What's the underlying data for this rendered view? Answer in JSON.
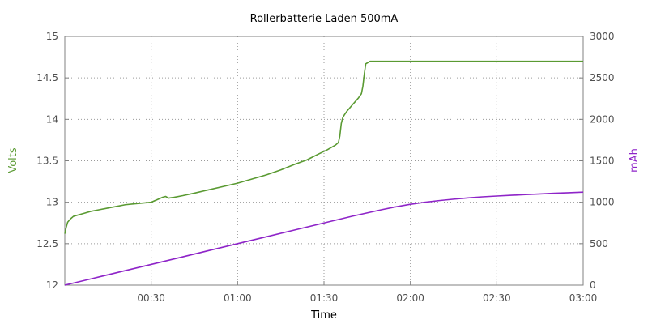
{
  "chart_data": {
    "type": "line",
    "title": "Rollerbatterie Laden 500mA",
    "xlabel": "Time",
    "ylabel_left": "Volts",
    "ylabel_right": "mAh",
    "xlim_minutes": [
      0,
      180
    ],
    "ylim_left": [
      12,
      15
    ],
    "ylim_right": [
      0,
      3000
    ],
    "grid": true,
    "x_ticks": [
      {
        "minutes": 30,
        "label": "00:30"
      },
      {
        "minutes": 60,
        "label": "01:00"
      },
      {
        "minutes": 90,
        "label": "01:30"
      },
      {
        "minutes": 120,
        "label": "02:00"
      },
      {
        "minutes": 150,
        "label": "02:30"
      },
      {
        "minutes": 180,
        "label": "03:00"
      }
    ],
    "y_left_ticks": [
      {
        "value": 12,
        "label": "12"
      },
      {
        "value": 12.5,
        "label": "12.5"
      },
      {
        "value": 13,
        "label": "13"
      },
      {
        "value": 13.5,
        "label": "13.5"
      },
      {
        "value": 14,
        "label": "14"
      },
      {
        "value": 14.5,
        "label": "14.5"
      },
      {
        "value": 15,
        "label": "15"
      }
    ],
    "y_right_ticks": [
      {
        "value": 0,
        "label": "0"
      },
      {
        "value": 500,
        "label": "500"
      },
      {
        "value": 1000,
        "label": "1000"
      },
      {
        "value": 1500,
        "label": "1500"
      },
      {
        "value": 2000,
        "label": "2000"
      },
      {
        "value": 2500,
        "label": "2500"
      },
      {
        "value": 3000,
        "label": "3000"
      }
    ],
    "series": [
      {
        "axis": "left",
        "color": "#5a9a32",
        "points": [
          [
            0,
            12.62
          ],
          [
            0.5,
            12.7
          ],
          [
            1,
            12.76
          ],
          [
            2,
            12.8
          ],
          [
            3,
            12.83
          ],
          [
            5,
            12.85
          ],
          [
            7,
            12.87
          ],
          [
            9,
            12.89
          ],
          [
            12,
            12.91
          ],
          [
            15,
            12.93
          ],
          [
            18,
            12.95
          ],
          [
            21,
            12.97
          ],
          [
            24,
            12.98
          ],
          [
            27,
            12.99
          ],
          [
            30,
            13.0
          ],
          [
            32,
            13.03
          ],
          [
            34,
            13.06
          ],
          [
            35,
            13.07
          ],
          [
            36,
            13.05
          ],
          [
            38,
            13.06
          ],
          [
            41,
            13.08
          ],
          [
            45,
            13.11
          ],
          [
            50,
            13.15
          ],
          [
            55,
            13.19
          ],
          [
            60,
            13.23
          ],
          [
            65,
            13.28
          ],
          [
            70,
            13.33
          ],
          [
            75,
            13.39
          ],
          [
            80,
            13.46
          ],
          [
            84,
            13.51
          ],
          [
            88,
            13.58
          ],
          [
            91,
            13.63
          ],
          [
            94,
            13.69
          ],
          [
            95,
            13.72
          ],
          [
            95.5,
            13.8
          ],
          [
            96,
            13.95
          ],
          [
            96.5,
            14.02
          ],
          [
            97,
            14.05
          ],
          [
            98,
            14.1
          ],
          [
            99,
            14.14
          ],
          [
            100,
            14.18
          ],
          [
            101,
            14.22
          ],
          [
            102,
            14.26
          ],
          [
            103,
            14.31
          ],
          [
            103.5,
            14.4
          ],
          [
            104,
            14.55
          ],
          [
            104.5,
            14.67
          ],
          [
            105,
            14.68
          ],
          [
            106,
            14.7
          ],
          [
            120,
            14.7
          ],
          [
            150,
            14.7
          ],
          [
            180,
            14.7
          ]
        ]
      },
      {
        "axis": "right",
        "color": "#8e24c8",
        "points": [
          [
            0,
            0
          ],
          [
            10,
            83
          ],
          [
            20,
            167
          ],
          [
            30,
            250
          ],
          [
            40,
            333
          ],
          [
            50,
            417
          ],
          [
            60,
            500
          ],
          [
            70,
            583
          ],
          [
            80,
            667
          ],
          [
            90,
            750
          ],
          [
            100,
            833
          ],
          [
            110,
            910
          ],
          [
            115,
            945
          ],
          [
            120,
            975
          ],
          [
            125,
            1000
          ],
          [
            130,
            1020
          ],
          [
            135,
            1037
          ],
          [
            140,
            1052
          ],
          [
            145,
            1065
          ],
          [
            150,
            1075
          ],
          [
            155,
            1084
          ],
          [
            160,
            1092
          ],
          [
            165,
            1100
          ],
          [
            170,
            1108
          ],
          [
            175,
            1115
          ],
          [
            180,
            1122
          ]
        ]
      }
    ],
    "label_colors": {
      "left": "#5a9a32",
      "right": "#8e24c8"
    }
  }
}
